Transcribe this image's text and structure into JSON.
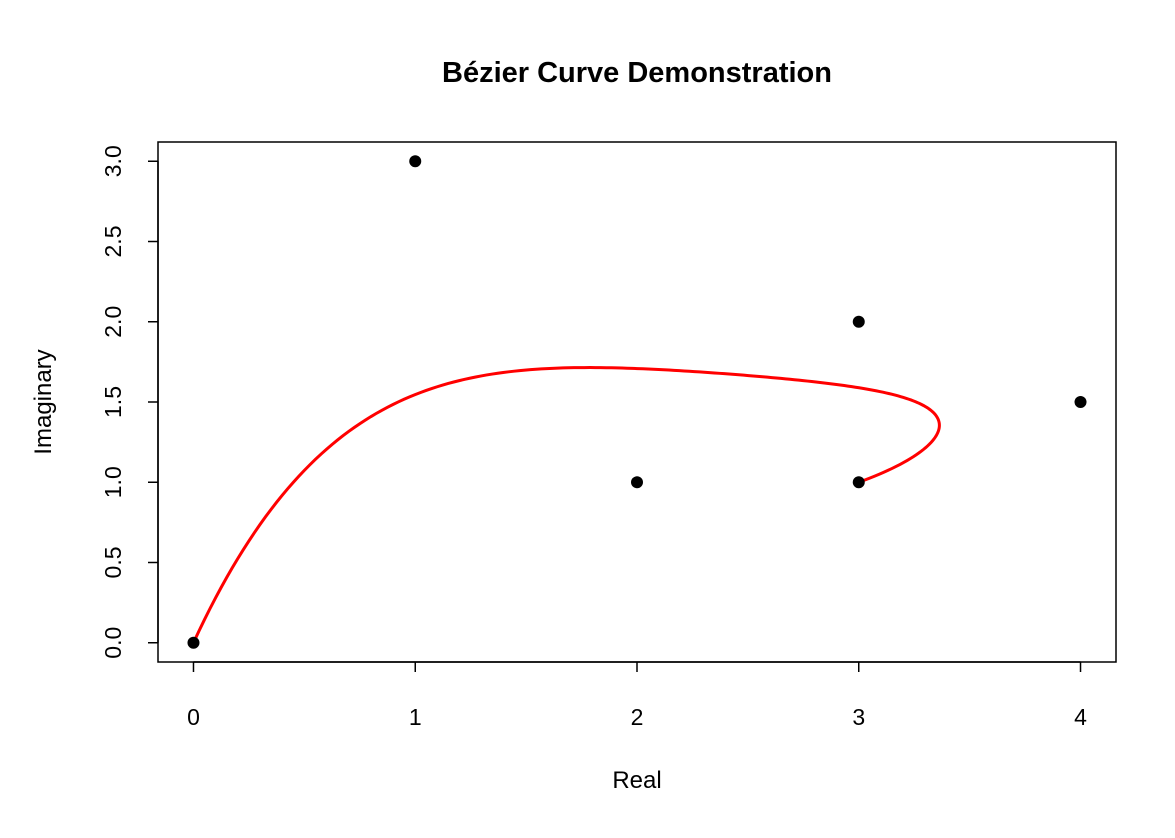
{
  "chart_data": {
    "type": "scatter",
    "title": "Bézier Curve Demonstration",
    "xlabel": "Real",
    "ylabel": "Imaginary",
    "xlim": [
      -0.16,
      4.16
    ],
    "ylim": [
      -0.12,
      3.12
    ],
    "x_ticks": [
      0,
      1,
      2,
      3,
      4
    ],
    "x_tick_labels": [
      "0",
      "1",
      "2",
      "3",
      "4"
    ],
    "y_ticks": [
      0,
      0.5,
      1,
      1.5,
      2,
      2.5,
      3
    ],
    "y_tick_labels": [
      "0.0",
      "0.5",
      "1.0",
      "1.5",
      "2.0",
      "2.5",
      "3.0"
    ],
    "grid": false,
    "legend": "none",
    "series": [
      {
        "kind": "points",
        "color": "#000000",
        "points": [
          {
            "x": 0,
            "y": 0
          },
          {
            "x": 1,
            "y": 3
          },
          {
            "x": 2,
            "y": 1
          },
          {
            "x": 3,
            "y": 2
          },
          {
            "x": 4,
            "y": 1.5
          },
          {
            "x": 3,
            "y": 1
          }
        ]
      },
      {
        "kind": "bezier-curve",
        "color": "#ff0000",
        "control_points": [
          {
            "x": 0,
            "y": 0
          },
          {
            "x": 1,
            "y": 3
          },
          {
            "x": 2,
            "y": 1
          },
          {
            "x": 3,
            "y": 2
          },
          {
            "x": 4,
            "y": 1.5
          },
          {
            "x": 3,
            "y": 1
          }
        ]
      }
    ]
  }
}
